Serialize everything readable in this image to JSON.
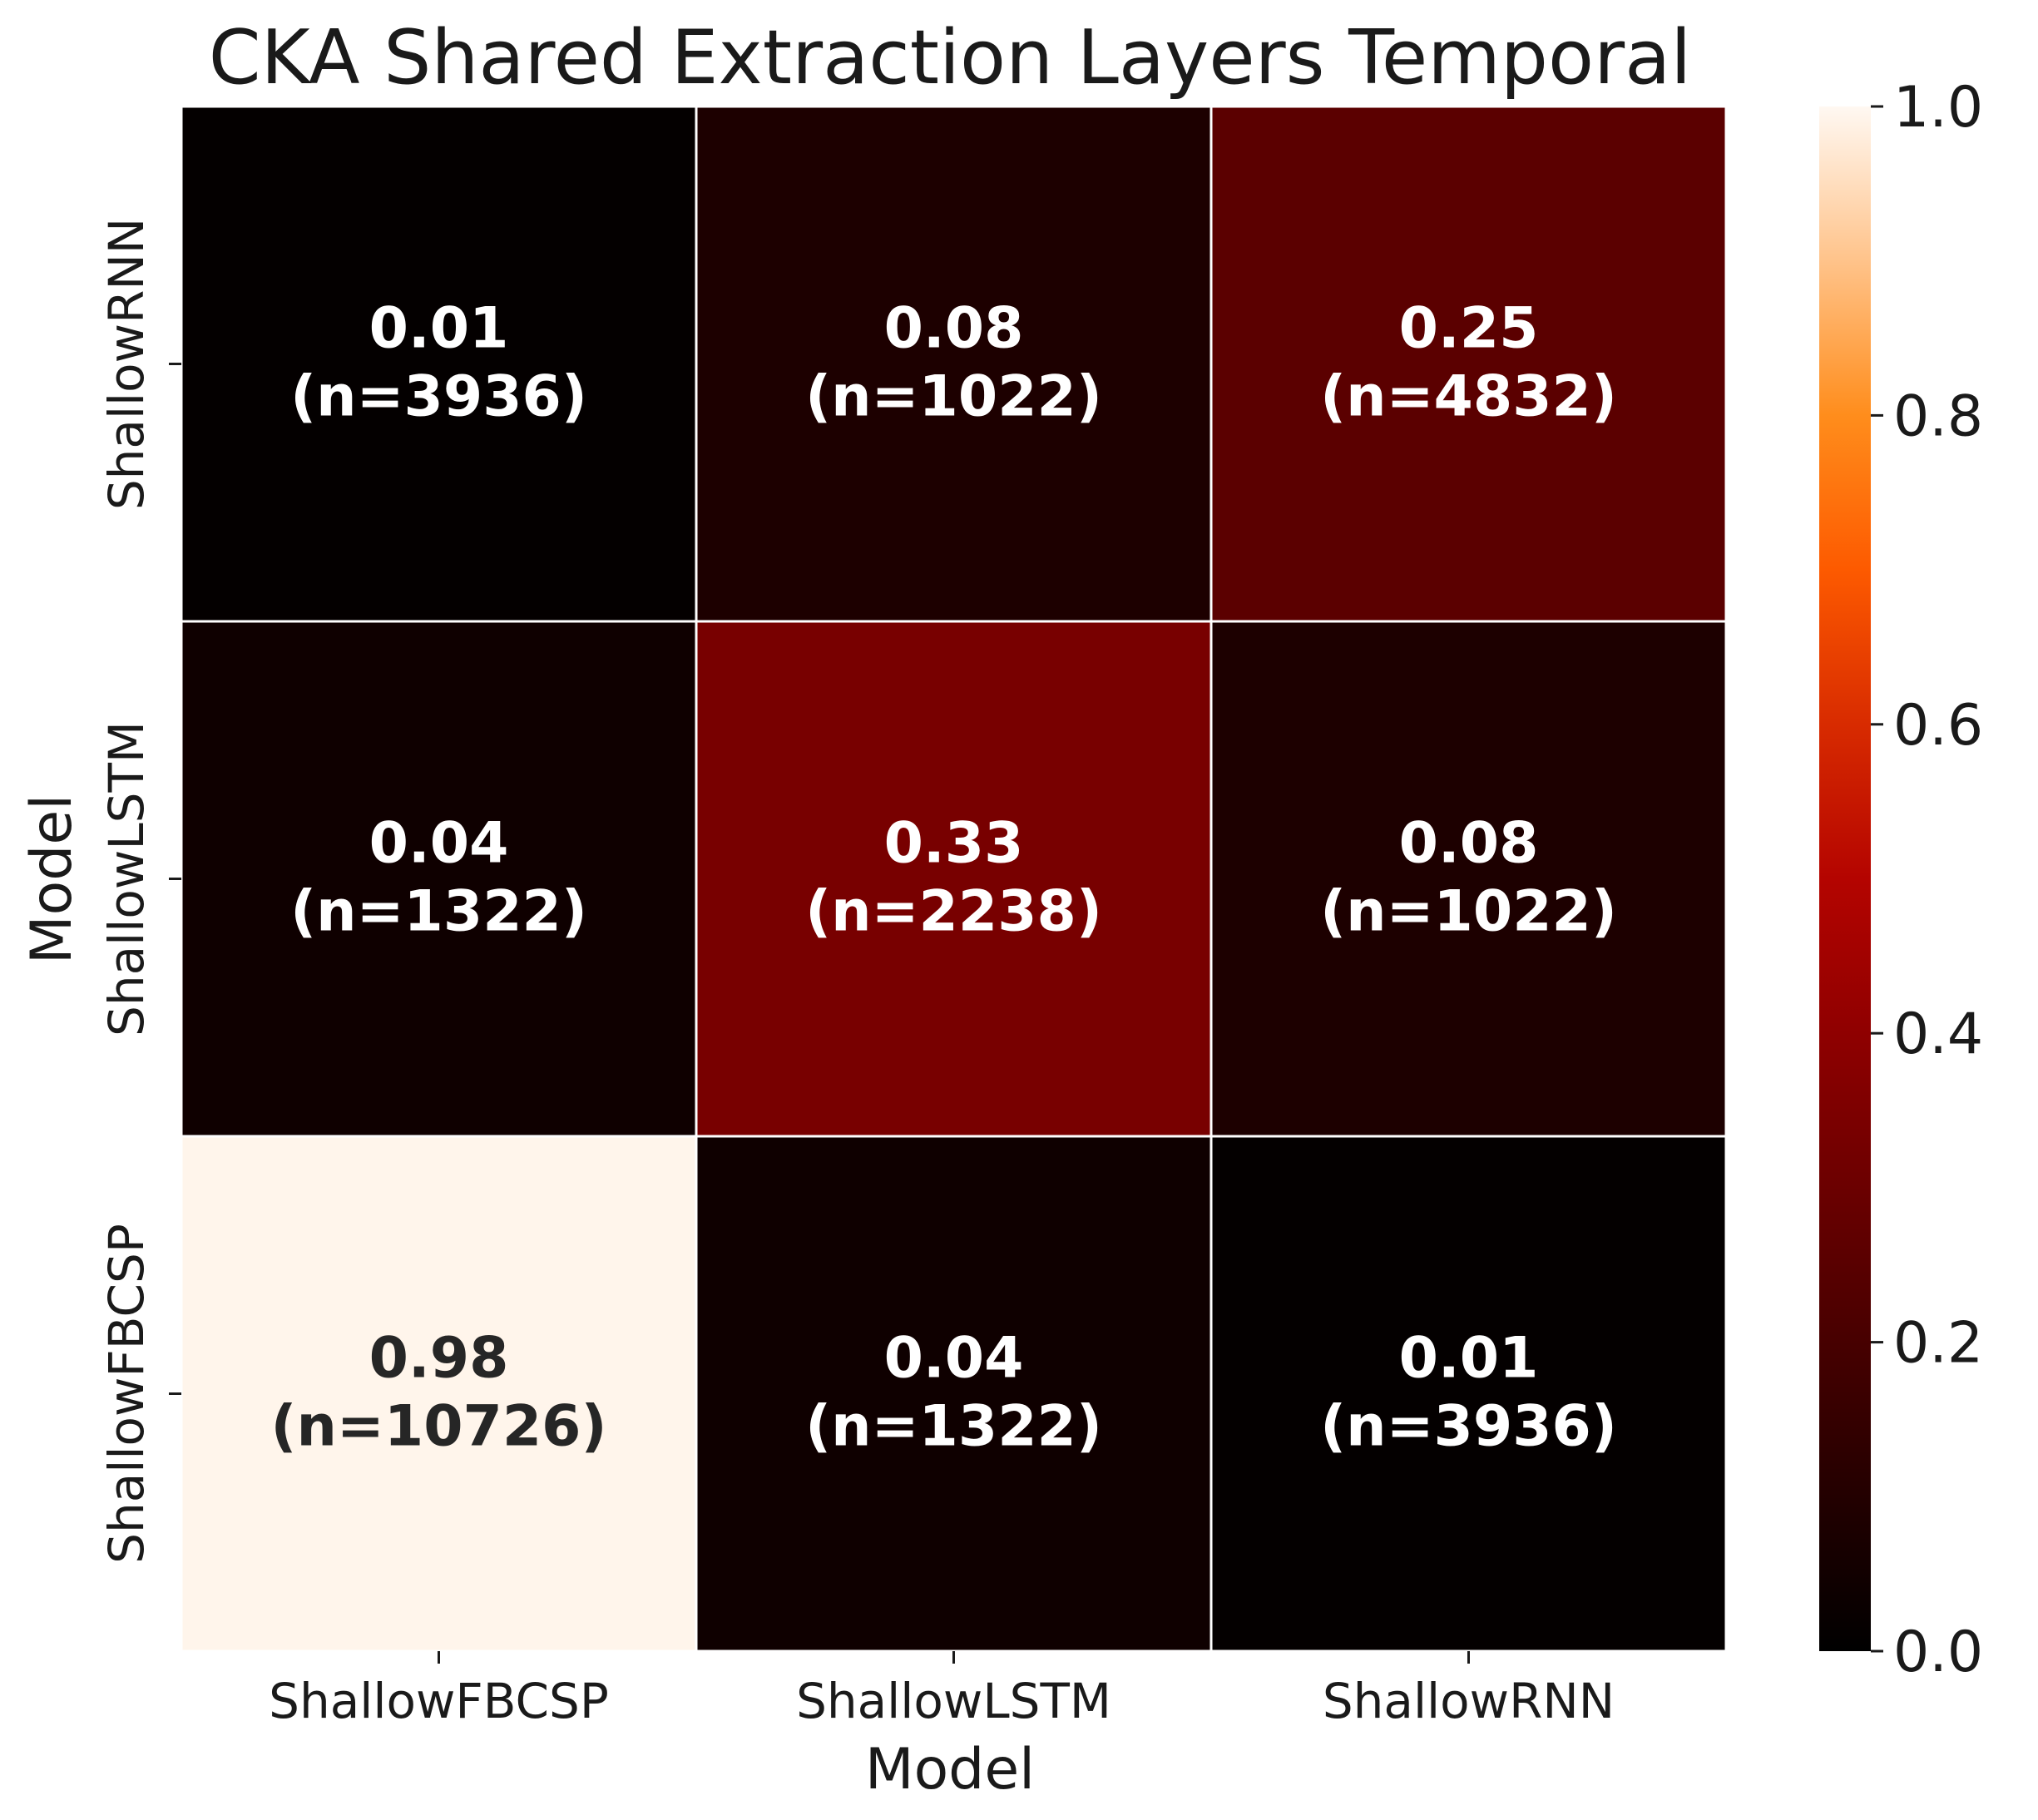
{
  "chart_data": {
    "type": "heatmap",
    "title": "CKA Shared Extraction Layers Temporal",
    "xlabel": "Model",
    "ylabel": "Model",
    "x_categories": [
      "ShallowFBCSP",
      "ShallowLSTM",
      "ShallowRNN"
    ],
    "y_categories": [
      "ShallowRNN",
      "ShallowLSTM",
      "ShallowFBCSP"
    ],
    "values": [
      [
        0.01,
        0.08,
        0.25
      ],
      [
        0.04,
        0.33,
        0.08
      ],
      [
        0.98,
        0.04,
        0.01
      ]
    ],
    "counts": [
      [
        "(n=3936)",
        "(n=1022)",
        "(n=4832)"
      ],
      [
        "(n=1322)",
        "(n=2238)",
        "(n=1022)"
      ],
      [
        "(n=10726)",
        "(n=1322)",
        "(n=3936)"
      ]
    ],
    "value_labels": [
      [
        "0.01",
        "0.08",
        "0.25"
      ],
      [
        "0.04",
        "0.33",
        "0.08"
      ],
      [
        "0.98",
        "0.04",
        "0.01"
      ]
    ],
    "colorbar": {
      "colormap": "gist_heat",
      "range": [
        0.0,
        1.0
      ],
      "ticks": [
        "0.0",
        "0.2",
        "0.4",
        "0.6",
        "0.8",
        "1.0"
      ],
      "tick_values": [
        0.0,
        0.2,
        0.4,
        0.6,
        0.8,
        1.0
      ]
    },
    "grid": true,
    "text_color_dark": "#262626",
    "text_color_light": "#ffffff",
    "cell_border_color": "#ffffff"
  }
}
